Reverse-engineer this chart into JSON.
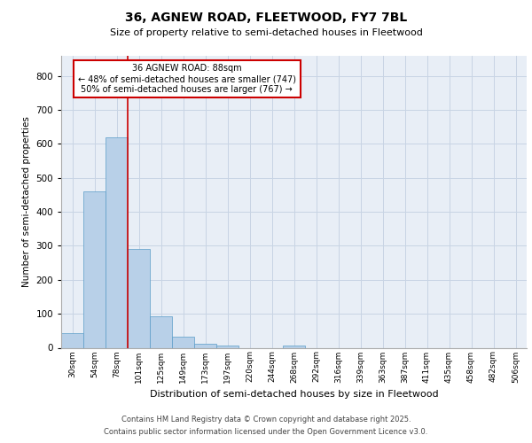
{
  "title": "36, AGNEW ROAD, FLEETWOOD, FY7 7BL",
  "subtitle": "Size of property relative to semi-detached houses in Fleetwood",
  "xlabel": "Distribution of semi-detached houses by size in Fleetwood",
  "ylabel": "Number of semi-detached properties",
  "categories": [
    "30sqm",
    "54sqm",
    "78sqm",
    "101sqm",
    "125sqm",
    "149sqm",
    "173sqm",
    "197sqm",
    "220sqm",
    "244sqm",
    "268sqm",
    "292sqm",
    "316sqm",
    "339sqm",
    "363sqm",
    "387sqm",
    "411sqm",
    "435sqm",
    "458sqm",
    "482sqm",
    "506sqm"
  ],
  "values": [
    44,
    459,
    618,
    291,
    93,
    33,
    13,
    7,
    0,
    0,
    6,
    0,
    0,
    0,
    0,
    0,
    0,
    0,
    0,
    0,
    0
  ],
  "bar_color": "#b8d0e8",
  "bar_edge_color": "#5a9cc8",
  "grid_color": "#c8d4e4",
  "background_color": "#e8eef6",
  "red_line_x": 2.5,
  "annotation_text": "36 AGNEW ROAD: 88sqm\n← 48% of semi-detached houses are smaller (747)\n50% of semi-detached houses are larger (767) →",
  "annotation_box_color": "#ffffff",
  "annotation_box_edge": "#cc0000",
  "red_line_color": "#cc0000",
  "ylim": [
    0,
    860
  ],
  "yticks": [
    0,
    100,
    200,
    300,
    400,
    500,
    600,
    700,
    800
  ],
  "footer_line1": "Contains HM Land Registry data © Crown copyright and database right 2025.",
  "footer_line2": "Contains public sector information licensed under the Open Government Licence v3.0."
}
